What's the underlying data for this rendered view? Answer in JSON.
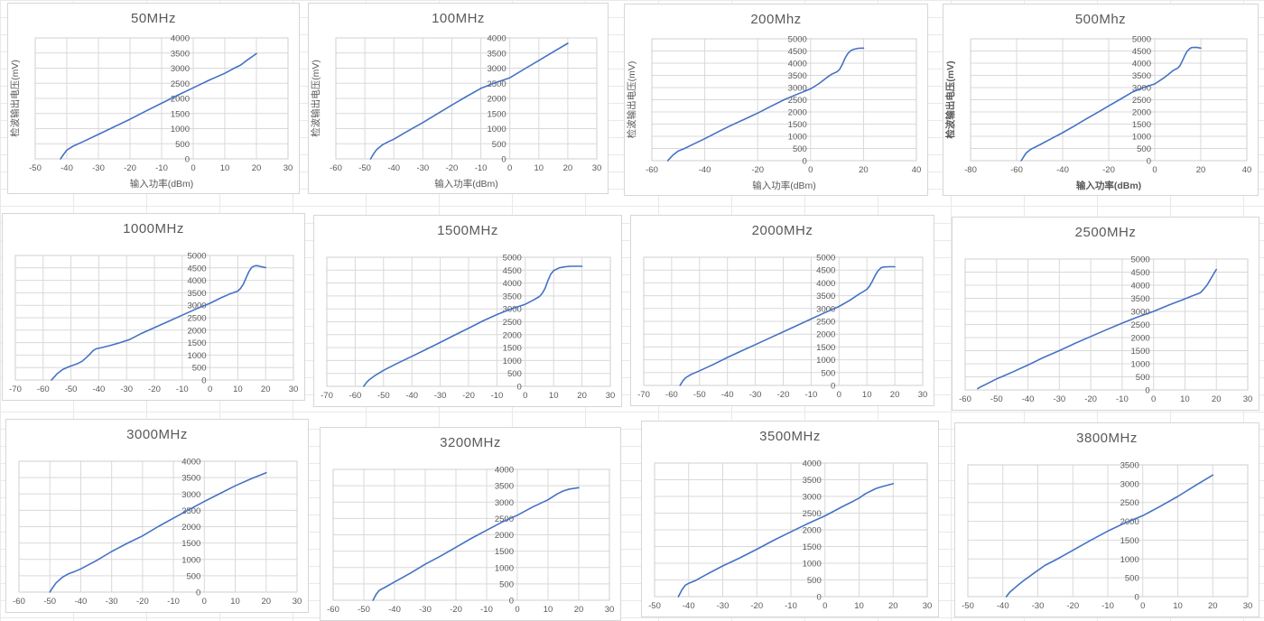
{
  "worksheet": {
    "description": "Excel sheet with 12 embedded line charts of detector output voltage vs input power at different RF frequencies"
  },
  "colors": {
    "line": "#4472c4",
    "grid": "#d9d9d9",
    "plot_border": "#cfcfcf",
    "text": "#595959",
    "cell_grid": "#e9e9e9",
    "chart_bg": "#ffffff"
  },
  "axis_titles": {
    "y": "检波输出电压(mV)",
    "x": "输入功率(dBm)"
  },
  "chart_data": [
    {
      "type": "line",
      "title": "50MHz",
      "ylabel": "检波输出电压(mV)",
      "xlabel": "输入功率(dBm)",
      "bold_labels": false,
      "xlim": [
        -50,
        30
      ],
      "xtick_step": 10,
      "ylim": [
        0,
        4000
      ],
      "ytick_step": 500,
      "x": [
        -42,
        -41,
        -40,
        -38,
        -35,
        -30,
        -25,
        -20,
        -15,
        -10,
        -5,
        0,
        5,
        10,
        13,
        15,
        17,
        20
      ],
      "y": [
        0,
        150,
        290,
        420,
        560,
        810,
        1060,
        1310,
        1580,
        1840,
        2100,
        2350,
        2600,
        2830,
        3000,
        3100,
        3260,
        3480
      ]
    },
    {
      "type": "line",
      "title": "100MHz",
      "ylabel": "检波输出电压(mV)",
      "xlabel": "输入功率(dBm)",
      "bold_labels": false,
      "xlim": [
        -60,
        30
      ],
      "xtick_step": 10,
      "ylim": [
        0,
        4000
      ],
      "ytick_step": 500,
      "x": [
        -48,
        -47,
        -46,
        -44,
        -42,
        -40,
        -35,
        -30,
        -25,
        -20,
        -15,
        -10,
        -5,
        0,
        5,
        10,
        15,
        20
      ],
      "y": [
        0,
        160,
        300,
        460,
        560,
        650,
        930,
        1200,
        1490,
        1780,
        2060,
        2330,
        2520,
        2680,
        2970,
        3250,
        3540,
        3820
      ]
    },
    {
      "type": "line",
      "title": "200Mhz",
      "ylabel": "检波输出电压(mV)",
      "xlabel": "输入功率(dBm)",
      "bold_labels": false,
      "xlim": [
        -60,
        40
      ],
      "xtick_step": 20,
      "ylim": [
        0,
        5000
      ],
      "ytick_step": 500,
      "x": [
        -54,
        -53,
        -52,
        -50,
        -48,
        -45,
        -40,
        -35,
        -30,
        -25,
        -20,
        -15,
        -10,
        -5,
        0,
        3,
        6,
        8,
        10,
        11,
        12,
        13,
        14,
        15,
        16,
        18,
        20
      ],
      "y": [
        0,
        120,
        230,
        400,
        480,
        640,
        900,
        1180,
        1450,
        1700,
        1950,
        2230,
        2500,
        2730,
        2950,
        3150,
        3400,
        3550,
        3650,
        3750,
        3950,
        4200,
        4380,
        4500,
        4560,
        4610,
        4620
      ]
    },
    {
      "type": "line",
      "title": "500Mhz",
      "ylabel": "检波输出电压(mV)",
      "xlabel": "输入功率(dBm)",
      "bold_labels": true,
      "xlim": [
        -80,
        40
      ],
      "xtick_step": 20,
      "ylim": [
        0,
        5000
      ],
      "ytick_step": 500,
      "x": [
        -58,
        -57,
        -56,
        -54,
        -50,
        -45,
        -40,
        -35,
        -30,
        -25,
        -20,
        -15,
        -10,
        -5,
        0,
        4,
        8,
        10,
        11,
        12,
        13,
        14,
        15,
        16,
        18,
        20
      ],
      "y": [
        0,
        150,
        300,
        460,
        650,
        900,
        1150,
        1420,
        1700,
        1970,
        2250,
        2520,
        2800,
        3000,
        3150,
        3400,
        3700,
        3800,
        3900,
        4100,
        4300,
        4480,
        4580,
        4640,
        4650,
        4620
      ]
    },
    {
      "type": "line",
      "title": "1000MHz",
      "ylabel": null,
      "xlabel": null,
      "bold_labels": false,
      "xlim": [
        -70,
        30
      ],
      "xtick_step": 10,
      "ylim": [
        0,
        5000
      ],
      "ytick_step": 500,
      "x": [
        -57,
        -56,
        -55,
        -53,
        -51,
        -50,
        -48,
        -46,
        -44,
        -42,
        -41,
        -39,
        -36,
        -33,
        -31,
        -29,
        -25,
        -20,
        -15,
        -10,
        -5,
        0,
        4,
        7,
        9,
        10,
        11,
        12,
        13,
        14,
        15,
        16,
        17,
        18,
        20
      ],
      "y": [
        0,
        120,
        250,
        420,
        520,
        560,
        640,
        750,
        950,
        1180,
        1250,
        1300,
        1380,
        1480,
        1550,
        1620,
        1850,
        2100,
        2350,
        2600,
        2850,
        3080,
        3300,
        3450,
        3530,
        3570,
        3680,
        3850,
        4100,
        4350,
        4520,
        4580,
        4590,
        4560,
        4510
      ]
    },
    {
      "type": "line",
      "title": "1500MHz",
      "ylabel": null,
      "xlabel": null,
      "bold_labels": false,
      "xlim": [
        -70,
        30
      ],
      "xtick_step": 10,
      "ylim": [
        0,
        5000
      ],
      "ytick_step": 500,
      "x": [
        -57,
        -56,
        -55,
        -53,
        -50,
        -45,
        -40,
        -35,
        -30,
        -25,
        -20,
        -15,
        -10,
        -5,
        0,
        3,
        5,
        6,
        7,
        8,
        9,
        10,
        12,
        14,
        16,
        18,
        20
      ],
      "y": [
        0,
        150,
        260,
        420,
        620,
        900,
        1160,
        1430,
        1700,
        1980,
        2250,
        2530,
        2780,
        3000,
        3180,
        3350,
        3480,
        3600,
        3800,
        4100,
        4350,
        4480,
        4590,
        4630,
        4650,
        4650,
        4650
      ]
    },
    {
      "type": "line",
      "title": "2000MHz",
      "ylabel": null,
      "xlabel": null,
      "bold_labels": false,
      "xlim": [
        -70,
        30
      ],
      "xtick_step": 10,
      "ylim": [
        0,
        5000
      ],
      "ytick_step": 500,
      "x": [
        -57,
        -56,
        -55,
        -53,
        -50,
        -45,
        -40,
        -35,
        -30,
        -25,
        -20,
        -15,
        -10,
        -5,
        0,
        4,
        7,
        9,
        10,
        11,
        12,
        13,
        14,
        15,
        16,
        18,
        20
      ],
      "y": [
        0,
        180,
        300,
        430,
        570,
        820,
        1090,
        1340,
        1590,
        1840,
        2090,
        2340,
        2590,
        2840,
        3080,
        3330,
        3550,
        3680,
        3750,
        3880,
        4080,
        4300,
        4480,
        4580,
        4620,
        4630,
        4630
      ]
    },
    {
      "type": "line",
      "title": "2500MHz",
      "ylabel": null,
      "xlabel": null,
      "bold_labels": false,
      "xlim": [
        -60,
        30
      ],
      "xtick_step": 10,
      "ylim": [
        0,
        5000
      ],
      "ytick_step": 500,
      "x": [
        -56,
        -55,
        -54,
        -52,
        -50,
        -48,
        -45,
        -40,
        -35,
        -30,
        -25,
        -20,
        -15,
        -10,
        -5,
        0,
        5,
        9,
        12,
        14,
        15,
        16,
        17,
        18,
        19,
        20
      ],
      "y": [
        50,
        120,
        180,
        300,
        420,
        520,
        680,
        950,
        1240,
        1500,
        1780,
        2040,
        2300,
        2550,
        2790,
        3000,
        3250,
        3430,
        3580,
        3670,
        3720,
        3850,
        4000,
        4200,
        4400,
        4600
      ]
    },
    {
      "type": "line",
      "title": "3000MHz",
      "ylabel": null,
      "xlabel": null,
      "bold_labels": false,
      "xlim": [
        -60,
        30
      ],
      "xtick_step": 10,
      "ylim": [
        0,
        4000
      ],
      "ytick_step": 500,
      "x": [
        -50,
        -49,
        -48,
        -46,
        -44,
        -42,
        -40,
        -35,
        -30,
        -25,
        -20,
        -15,
        -10,
        -5,
        0,
        5,
        10,
        15,
        20
      ],
      "y": [
        0,
        150,
        280,
        450,
        560,
        630,
        710,
        960,
        1240,
        1490,
        1720,
        2000,
        2260,
        2520,
        2770,
        3010,
        3250,
        3460,
        3650
      ]
    },
    {
      "type": "line",
      "title": "3200MHz",
      "ylabel": null,
      "xlabel": null,
      "bold_labels": false,
      "xlim": [
        -60,
        30
      ],
      "xtick_step": 10,
      "ylim": [
        0,
        4000
      ],
      "ytick_step": 500,
      "x": [
        -47,
        -46,
        -45,
        -43,
        -40,
        -35,
        -30,
        -25,
        -20,
        -15,
        -10,
        -5,
        0,
        5,
        10,
        13,
        15,
        17,
        20
      ],
      "y": [
        0,
        180,
        300,
        400,
        560,
        820,
        1100,
        1350,
        1620,
        1890,
        2140,
        2390,
        2600,
        2850,
        3070,
        3250,
        3340,
        3400,
        3440
      ]
    },
    {
      "type": "line",
      "title": "3500MHz",
      "ylabel": null,
      "xlabel": null,
      "bold_labels": false,
      "xlim": [
        -50,
        30
      ],
      "xtick_step": 10,
      "ylim": [
        0,
        4000
      ],
      "ytick_step": 500,
      "x": [
        -43,
        -42,
        -41,
        -40,
        -38,
        -35,
        -30,
        -25,
        -20,
        -15,
        -10,
        -5,
        0,
        5,
        8,
        10,
        12,
        15,
        17,
        20
      ],
      "y": [
        0,
        200,
        340,
        400,
        480,
        650,
        920,
        1160,
        1420,
        1690,
        1940,
        2190,
        2420,
        2690,
        2840,
        2950,
        3090,
        3240,
        3300,
        3380
      ]
    },
    {
      "type": "line",
      "title": "3800MHz",
      "ylabel": null,
      "xlabel": null,
      "bold_labels": false,
      "xlim": [
        -50,
        30
      ],
      "xtick_step": 10,
      "ylim": [
        0,
        3500
      ],
      "ytick_step": 500,
      "x": [
        -39,
        -38,
        -36,
        -34,
        -31,
        -28,
        -25,
        -20,
        -15,
        -10,
        -5,
        0,
        5,
        10,
        15,
        20
      ],
      "y": [
        0,
        120,
        280,
        430,
        630,
        830,
        970,
        1230,
        1490,
        1740,
        1960,
        2150,
        2400,
        2660,
        2950,
        3230
      ]
    }
  ]
}
